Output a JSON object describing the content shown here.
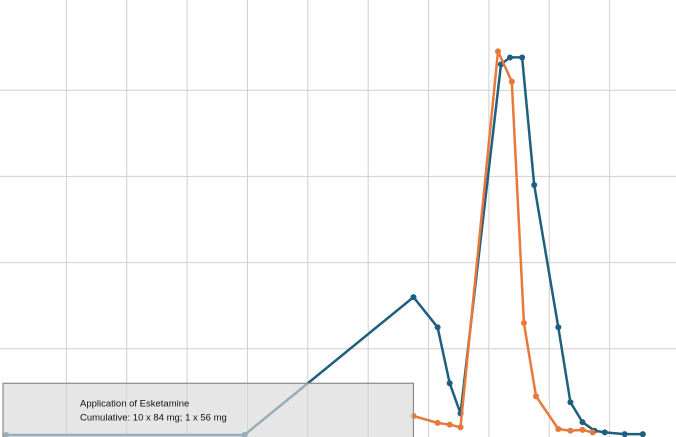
{
  "chart_data": {
    "type": "line",
    "title": "",
    "xlabel": "",
    "ylabel": "",
    "grid": true,
    "xlim": [
      0,
      11
    ],
    "ylim": [
      0,
      5
    ],
    "series": [
      {
        "color": "#1f5f7f",
        "x": [
          0.0,
          3.95,
          6.75,
          7.15,
          7.35,
          7.53,
          8.2,
          8.35,
          8.55,
          8.75,
          9.15,
          9.35,
          9.55,
          9.75,
          9.92,
          10.25,
          10.55
        ],
        "y": [
          0.0,
          0.0,
          1.6,
          1.25,
          0.6,
          0.25,
          4.3,
          4.38,
          4.38,
          2.9,
          1.25,
          0.38,
          0.15,
          0.05,
          0.03,
          0.01,
          0.01
        ]
      },
      {
        "color": "#e8793a",
        "x": [
          6.75,
          7.15,
          7.35,
          7.53,
          8.15,
          8.38,
          8.58,
          8.78,
          9.15,
          9.35,
          9.55,
          9.72
        ],
        "y": [
          0.22,
          0.14,
          0.12,
          0.09,
          4.45,
          4.1,
          1.3,
          0.45,
          0.07,
          0.05,
          0.06,
          0.03
        ]
      }
    ],
    "annotation": {
      "line1": "Application of Esketamine",
      "line2": "Cumulative: 10 x 84 mg; 1 x 56 mg",
      "x_start": 0.0,
      "x_end": 6.75,
      "y_top": 0.6
    }
  }
}
